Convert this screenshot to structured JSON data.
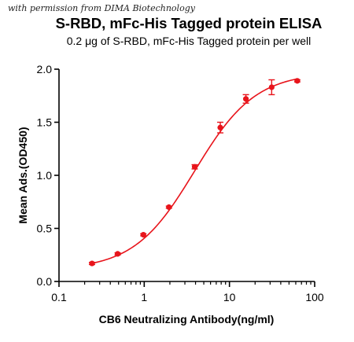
{
  "watermark": "with permission from DIMA Biotechnology",
  "chart_data": {
    "type": "scatter",
    "title": "S-RBD,  mFc-His Tagged protein ELISA",
    "subtitle": "0.2 μg of S-RBD, mFc-His Tagged protein per well",
    "xlabel": "CB6 Neutralizing Antibody(ng/ml)",
    "ylabel": "Mean Ads.(OD450)",
    "x_scale": "log",
    "xlim": [
      0.1,
      100
    ],
    "ylim": [
      0,
      2.0
    ],
    "x_ticks": [
      {
        "value": 0.1,
        "label": "0.1"
      },
      {
        "value": 1,
        "label": "1"
      },
      {
        "value": 10,
        "label": "10"
      },
      {
        "value": 100,
        "label": "100"
      }
    ],
    "y_ticks": [
      {
        "value": 0.0,
        "label": "0.0"
      },
      {
        "value": 0.5,
        "label": "0.5"
      },
      {
        "value": 1.0,
        "label": "1.0"
      },
      {
        "value": 1.5,
        "label": "1.5"
      },
      {
        "value": 2.0,
        "label": "2.0"
      }
    ],
    "grid": false,
    "color": "#e8141b",
    "series": [
      {
        "x": [
          0.244,
          0.488,
          0.977,
          1.95,
          3.91,
          7.81,
          15.6,
          31.3,
          62.5
        ],
        "y": [
          0.17,
          0.26,
          0.44,
          0.7,
          1.08,
          1.45,
          1.72,
          1.83,
          1.89
        ],
        "error": [
          0.01,
          0.01,
          0.01,
          0.01,
          0.02,
          0.05,
          0.04,
          0.07,
          0.01
        ]
      }
    ],
    "fit": {
      "type": "4PL",
      "bottom": 0.11,
      "top": 1.97,
      "ec50": 3.9,
      "hill": 1.22,
      "x_range": [
        0.244,
        62.5
      ]
    }
  }
}
